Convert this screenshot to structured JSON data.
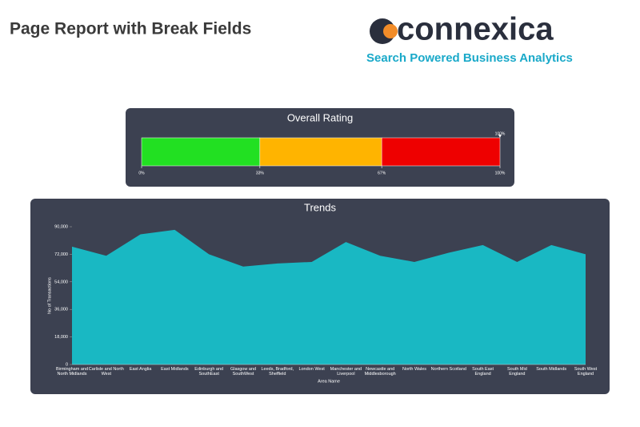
{
  "header": {
    "title": "Page Report with Break Fields"
  },
  "logo": {
    "name": "connexica",
    "tagline": "Search Powered Business Analytics"
  },
  "chart_data": [
    {
      "type": "gauge",
      "title": "Overall Rating",
      "xlim": [
        0,
        100
      ],
      "xticks": [
        {
          "value": 0,
          "label": "0%"
        },
        {
          "value": 33,
          "label": "33%"
        },
        {
          "value": 67,
          "label": "67%"
        },
        {
          "value": 100,
          "label": "100%"
        }
      ],
      "colors": [
        "#22e022",
        "#ffb400",
        "#ee0000"
      ],
      "value": 100,
      "value_label": "100%"
    },
    {
      "type": "area",
      "title": "Trends",
      "x_label": "Area Name",
      "y_label": "No of Transactions",
      "categories": [
        "Birmingham and North Midlands",
        "Carlisle and North West",
        "East Anglia",
        "East Midlands",
        "Edinburgh and SouthEast",
        "Glasgow and SouthWest",
        "Leeds, Bradford, Sheffield",
        "London West",
        "Manchester and Liverpool",
        "Newcastle and Middlesborough",
        "North Wales",
        "Northern Scotland",
        "South East England",
        "South Mid England",
        "South Midlands",
        "South West England"
      ],
      "values": [
        77000,
        71000,
        85000,
        88000,
        72000,
        64000,
        66000,
        67000,
        80000,
        71000,
        67000,
        73000,
        78000,
        67000,
        78000,
        72000
      ],
      "color": "#17bfc9",
      "ylim": [
        0,
        90000
      ],
      "yticks": [
        0,
        {
          "value": 18000,
          "label": "18,000"
        },
        {
          "value": 36000,
          "label": "36,000"
        },
        {
          "value": 54000,
          "label": "54,000"
        },
        {
          "value": 72000,
          "label": "72,000"
        },
        {
          "value": 90000,
          "label": "90,000"
        }
      ]
    }
  ]
}
